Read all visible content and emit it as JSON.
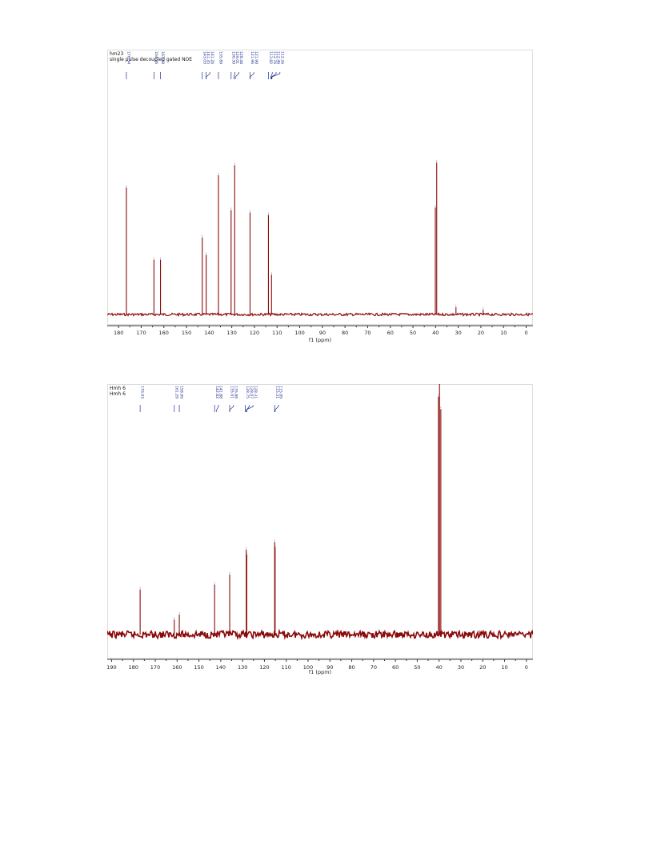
{
  "chart_data": [
    {
      "type": "line",
      "title_lines": [
        "hm23",
        "single pulse decoupled gated NOE"
      ],
      "xlabel": "f1 (ppm)",
      "xlim": [
        185,
        -3
      ],
      "x_reversed": true,
      "ylim": [
        0,
        1
      ],
      "grid": false,
      "ticks": [
        180,
        170,
        160,
        150,
        140,
        130,
        120,
        110,
        100,
        90,
        80,
        70,
        60,
        50,
        40,
        30,
        20,
        10,
        0
      ],
      "peak_labels": [
        "176.54",
        "164.36",
        "161.48",
        "143.03",
        "141.35",
        "141.26",
        "135.89",
        "130.30",
        "129.01",
        "128.44",
        "121.96",
        "121.90",
        "113.82",
        "112.76",
        "112.46",
        "112.26"
      ],
      "peaks": [
        {
          "x": 176.54,
          "y": 0.51
        },
        {
          "x": 164.36,
          "y": 0.22
        },
        {
          "x": 161.48,
          "y": 0.22
        },
        {
          "x": 143.03,
          "y": 0.31
        },
        {
          "x": 141.3,
          "y": 0.24
        },
        {
          "x": 135.89,
          "y": 0.56
        },
        {
          "x": 130.3,
          "y": 0.42
        },
        {
          "x": 128.72,
          "y": 0.6
        },
        {
          "x": 121.93,
          "y": 0.41
        },
        {
          "x": 113.82,
          "y": 0.4
        },
        {
          "x": 112.46,
          "y": 0.16
        },
        {
          "x": 39.5,
          "y": 0.61
        },
        {
          "x": 40.1,
          "y": 0.43
        },
        {
          "x": 31.0,
          "y": 0.03
        },
        {
          "x": 19.0,
          "y": 0.02
        }
      ],
      "colors": {
        "spectrum": "#8b0a0a",
        "labels": "#1f2f8f"
      }
    },
    {
      "type": "line",
      "title_lines": [
        "Hmh 6",
        "Hmh 6"
      ],
      "xlabel": "f1 (ppm)",
      "xlim": [
        192,
        -3
      ],
      "x_reversed": true,
      "ylim": [
        0,
        1
      ],
      "grid": false,
      "ticks": [
        190,
        180,
        170,
        160,
        150,
        140,
        130,
        120,
        110,
        100,
        90,
        80,
        70,
        60,
        50,
        40,
        30,
        20,
        10,
        0
      ],
      "peak_labels": [
        "176.93",
        "161.29",
        "158.99",
        "142.82",
        "141.88",
        "135.91",
        "135.88",
        "128.75",
        "128.07",
        "128.31",
        "115.31",
        "115.09"
      ],
      "peaks": [
        {
          "x": 176.93,
          "y": 0.18
        },
        {
          "x": 161.29,
          "y": 0.06
        },
        {
          "x": 158.99,
          "y": 0.08
        },
        {
          "x": 142.82,
          "y": 0.2
        },
        {
          "x": 135.91,
          "y": 0.24
        },
        {
          "x": 128.31,
          "y": 0.34
        },
        {
          "x": 128.07,
          "y": 0.32
        },
        {
          "x": 115.31,
          "y": 0.37
        },
        {
          "x": 115.09,
          "y": 0.35
        },
        {
          "x": 39.8,
          "y": 1.0
        },
        {
          "x": 40.3,
          "y": 0.95
        },
        {
          "x": 39.2,
          "y": 0.9
        }
      ],
      "colors": {
        "spectrum": "#8b0a0a",
        "labels": "#1f2f8f"
      }
    }
  ]
}
